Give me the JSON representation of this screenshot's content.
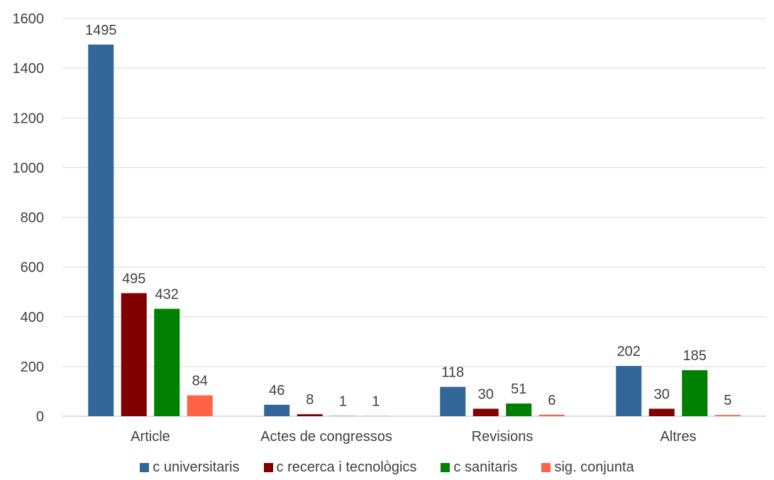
{
  "chart_data": {
    "type": "bar",
    "categories": [
      "Article",
      "Actes de congressos",
      "Revisions",
      "Altres"
    ],
    "series": [
      {
        "name": "c universitaris",
        "color": "#336699",
        "values": [
          1495,
          46,
          118,
          202
        ]
      },
      {
        "name": "c recerca i tecnològics",
        "color": "#800000",
        "values": [
          495,
          8,
          30,
          30
        ]
      },
      {
        "name": "c sanitaris",
        "color": "#008000",
        "values": [
          432,
          1,
          51,
          185
        ]
      },
      {
        "name": "sig. conjunta",
        "color": "#ff6347",
        "values": [
          84,
          1,
          6,
          5
        ]
      }
    ],
    "y_ticks": [
      "0",
      "200",
      "400",
      "600",
      "800",
      "1000",
      "1200",
      "1400",
      "1600"
    ],
    "ylim": [
      0,
      1600
    ],
    "grid": true,
    "legend_position": "bottom"
  }
}
